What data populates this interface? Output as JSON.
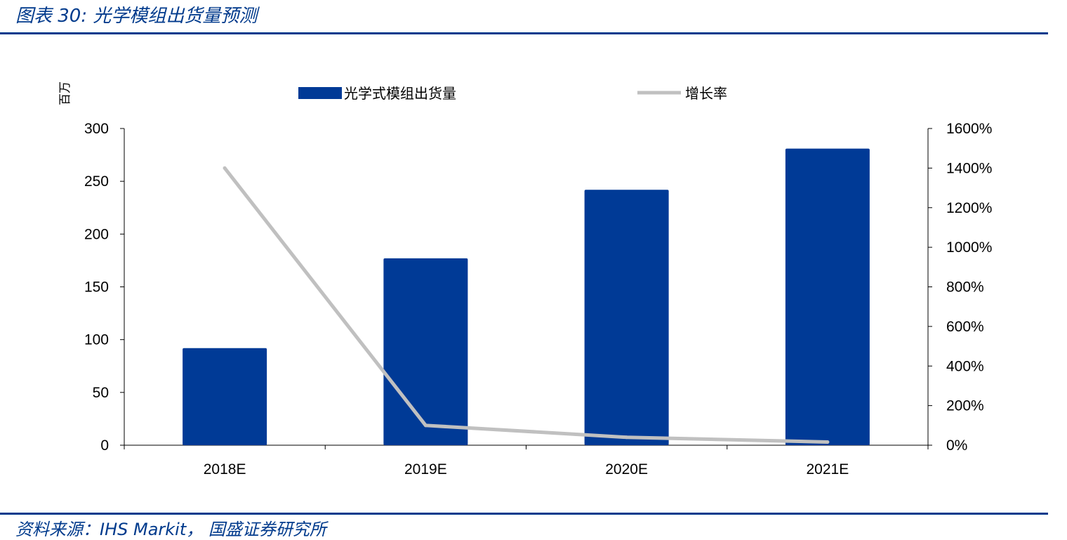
{
  "figure": {
    "title": "图表 30:  光学模组出货量预测",
    "source": "资料来源：IHS Markit， 国盛证券研究所"
  },
  "chart_data": {
    "type": "bar",
    "categories": [
      "2018E",
      "2019E",
      "2020E",
      "2021E"
    ],
    "series": [
      {
        "name": "光学式模组出货量",
        "type": "bar",
        "axis": "left",
        "color": "#003a96",
        "values": [
          92,
          177,
          242,
          281
        ]
      },
      {
        "name": "增长率",
        "type": "line",
        "axis": "right",
        "color": "#c0c0c0",
        "values": [
          1400,
          100,
          40,
          16
        ]
      }
    ],
    "y_unit_label": "百万",
    "ylim": [
      0,
      300
    ],
    "yticks": [
      0,
      50,
      100,
      150,
      200,
      250,
      300
    ],
    "y2lim": [
      0,
      1600
    ],
    "y2ticks": [
      "0%",
      "200%",
      "400%",
      "600%",
      "800%",
      "1000%",
      "1200%",
      "1400%",
      "1600%"
    ],
    "legend_position": "top-center",
    "grid": false
  }
}
